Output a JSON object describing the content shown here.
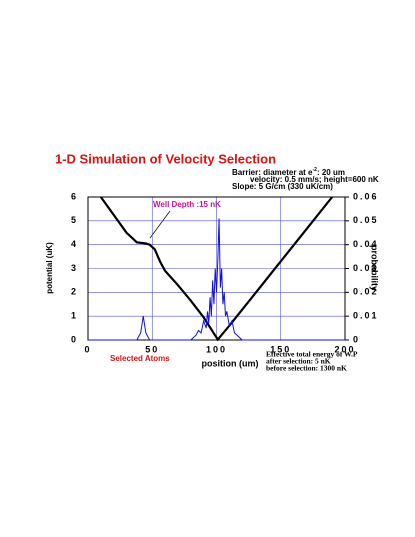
{
  "chart_data": {
    "type": "line",
    "title": "1-D Simulation of Velocity Selection",
    "annotations": {
      "barrier_prefix": "Barrier: diameter at e",
      "barrier_sup": "-2",
      "barrier_suffix": ": 20 um",
      "velocity": "velocity: 0.5 mm/s; height=600 nK",
      "slope": "Slope: 5 G/cm (330 uK/cm)",
      "well_depth": "Well Depth :15 nK",
      "selected": "Selected Atoms",
      "energy": "Effective total energy of W.P",
      "after": "after selection: 5 nK",
      "before": "before selection: 1300 nK"
    },
    "xlabel": "position (um)",
    "ylabel": "potential (uK)",
    "y2label": "probability",
    "xlim": [
      0,
      200
    ],
    "xticks": [
      0,
      50,
      100,
      150,
      200
    ],
    "ylim": [
      0,
      6
    ],
    "yticks": [
      0,
      1,
      2,
      3,
      4,
      5,
      6
    ],
    "y2lim": [
      0,
      0.06
    ],
    "y2ticks": [
      0,
      0.01,
      0.02,
      0.03,
      0.04,
      0.05,
      0.06
    ],
    "grid": true,
    "series": [
      {
        "color": "#000000",
        "axis": "y",
        "x": [
          10,
          20,
          30,
          38,
          45,
          48,
          52,
          56,
          60,
          65,
          70,
          80,
          90,
          101,
          110,
          130,
          150,
          170,
          190
        ],
        "values": [
          6,
          5.25,
          4.5,
          4.1,
          4.05,
          4.0,
          3.8,
          3.3,
          2.9,
          2.6,
          2.3,
          1.65,
          0.95,
          0.02,
          0.6,
          1.95,
          3.3,
          4.65,
          6
        ]
      },
      {
        "color": "#1010e0",
        "axis": "y2",
        "x": [
          0,
          38,
          41,
          43,
          45,
          48,
          80,
          84,
          86,
          88,
          90,
          92,
          93,
          94,
          95,
          96,
          97,
          98,
          99,
          100,
          101,
          102,
          103,
          104,
          105,
          106,
          107,
          108,
          110,
          112,
          114,
          116,
          120,
          200
        ],
        "values": [
          0,
          0,
          0.003,
          0.01,
          0.003,
          0,
          0,
          0.002,
          0.004,
          0.003,
          0.008,
          0.005,
          0.012,
          0.007,
          0.018,
          0.01,
          0.025,
          0.015,
          0.03,
          0.02,
          0.033,
          0.051,
          0.022,
          0.03,
          0.015,
          0.02,
          0.01,
          0.012,
          0.006,
          0.008,
          0.003,
          0.002,
          0,
          0
        ]
      }
    ]
  }
}
